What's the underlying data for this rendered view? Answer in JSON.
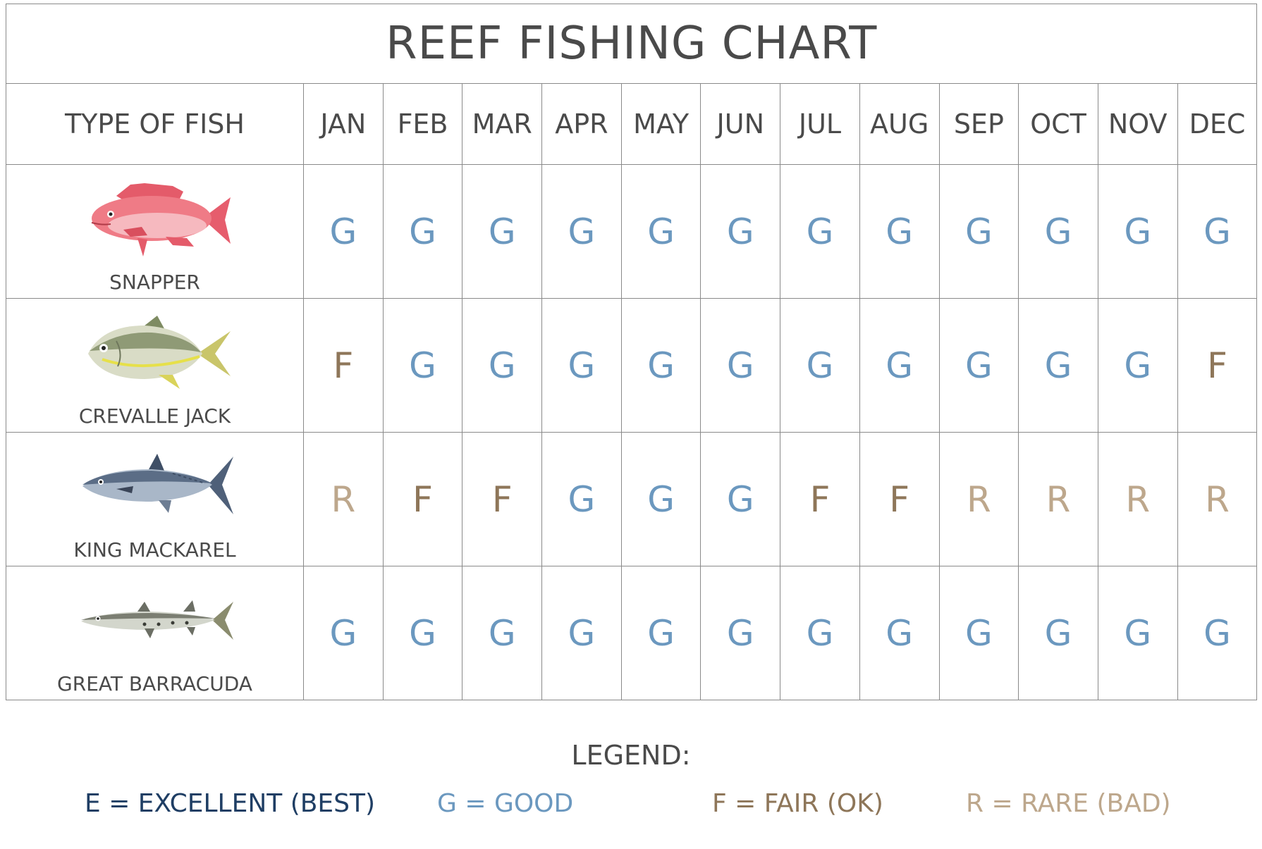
{
  "title": "REEF FISHING CHART",
  "header": {
    "type_label": "TYPE OF FISH",
    "months": [
      "JAN",
      "FEB",
      "MAR",
      "APR",
      "MAY",
      "JUN",
      "JUL",
      "AUG",
      "SEP",
      "OCT",
      "NOV",
      "DEC"
    ]
  },
  "fish": [
    {
      "name": "SNAPPER",
      "icon": "snapper-icon",
      "ratings": [
        "G",
        "G",
        "G",
        "G",
        "G",
        "G",
        "G",
        "G",
        "G",
        "G",
        "G",
        "G"
      ]
    },
    {
      "name": "CREVALLE JACK",
      "icon": "crevalle-jack-icon",
      "ratings": [
        "F",
        "G",
        "G",
        "G",
        "G",
        "G",
        "G",
        "G",
        "G",
        "G",
        "G",
        "F"
      ]
    },
    {
      "name": "KING MACKAREL",
      "icon": "king-mackarel-icon",
      "ratings": [
        "R",
        "F",
        "F",
        "G",
        "G",
        "G",
        "F",
        "F",
        "R",
        "R",
        "R",
        "R"
      ]
    },
    {
      "name": "GREAT BARRACUDA",
      "icon": "great-barracuda-icon",
      "ratings": [
        "G",
        "G",
        "G",
        "G",
        "G",
        "G",
        "G",
        "G",
        "G",
        "G",
        "G",
        "G"
      ]
    }
  ],
  "legend": {
    "title": "LEGEND:",
    "items": [
      {
        "code": "E",
        "text": "E = EXCELLENT (BEST)"
      },
      {
        "code": "G",
        "text": "G = GOOD"
      },
      {
        "code": "F",
        "text": "F = FAIR (OK)"
      },
      {
        "code": "R",
        "text": "R = RARE (BAD)"
      }
    ]
  },
  "colors": {
    "E": "#1f3e64",
    "G": "#6b98bf",
    "F": "#8e7659",
    "R": "#bda78c",
    "text": "#4a4a4a",
    "grid": "#8a8a8a"
  }
}
